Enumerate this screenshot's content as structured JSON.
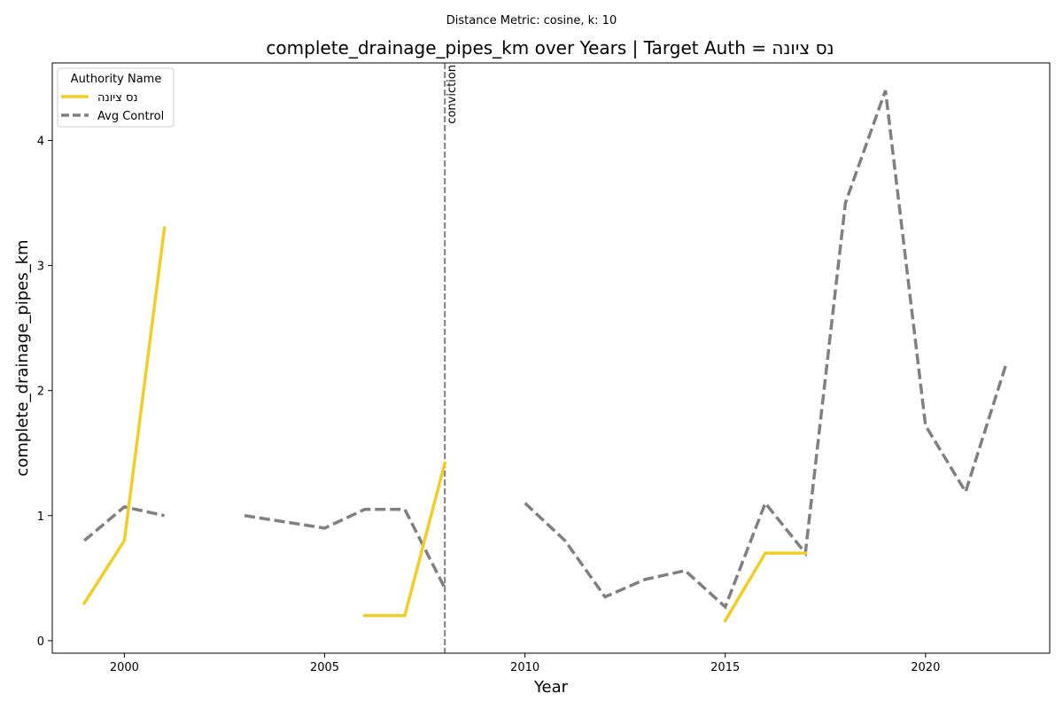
{
  "chart_data": {
    "type": "line",
    "suptitle": "Distance Metric: cosine, k: 10",
    "title": "complete_drainage_pipes_km over Years | Target Auth = נס ציונה",
    "xlabel": "Year",
    "ylabel": "complete_drainage_pipes_km",
    "xlim": [
      1998.2,
      2023.1
    ],
    "ylim": [
      -0.1,
      4.62
    ],
    "xticks": [
      2000,
      2005,
      2010,
      2015,
      2020
    ],
    "yticks": [
      0,
      1,
      2,
      3,
      4
    ],
    "grid": false,
    "legend": {
      "title": "Authority Name",
      "position": "top-left"
    },
    "series": [
      {
        "name": "נס ציונה",
        "color": "#f2cd24",
        "style": "solid",
        "points": [
          [
            1999,
            0.3
          ],
          [
            2000,
            0.8
          ],
          [
            2001,
            3.3
          ],
          [
            2002,
            null
          ],
          [
            2006,
            0.2
          ],
          [
            2007,
            0.2
          ],
          [
            2008,
            1.42
          ],
          [
            2009,
            null
          ],
          [
            2015,
            0.16
          ],
          [
            2016,
            0.7
          ],
          [
            2017,
            0.7
          ]
        ]
      },
      {
        "name": "Avg Control",
        "color": "#808080",
        "style": "dashed",
        "points": [
          [
            1999,
            0.8
          ],
          [
            2000,
            1.07
          ],
          [
            2001,
            1.0
          ],
          [
            2002,
            null
          ],
          [
            2003,
            1.0
          ],
          [
            2004,
            0.95
          ],
          [
            2005,
            0.9
          ],
          [
            2006,
            1.05
          ],
          [
            2007,
            1.05
          ],
          [
            2008,
            0.42
          ],
          [
            2009,
            null
          ],
          [
            2010,
            1.1
          ],
          [
            2011,
            0.8
          ],
          [
            2012,
            0.35
          ],
          [
            2013,
            0.49
          ],
          [
            2014,
            0.56
          ],
          [
            2015,
            0.27
          ],
          [
            2016,
            1.1
          ],
          [
            2017,
            0.7
          ],
          [
            2018,
            3.5
          ],
          [
            2019,
            4.4
          ],
          [
            2020,
            1.72
          ],
          [
            2021,
            1.19
          ],
          [
            2022,
            2.2
          ]
        ]
      }
    ],
    "annotations": [
      {
        "type": "vline",
        "x": 2008,
        "label": "conviction",
        "color": "#808080"
      }
    ]
  }
}
